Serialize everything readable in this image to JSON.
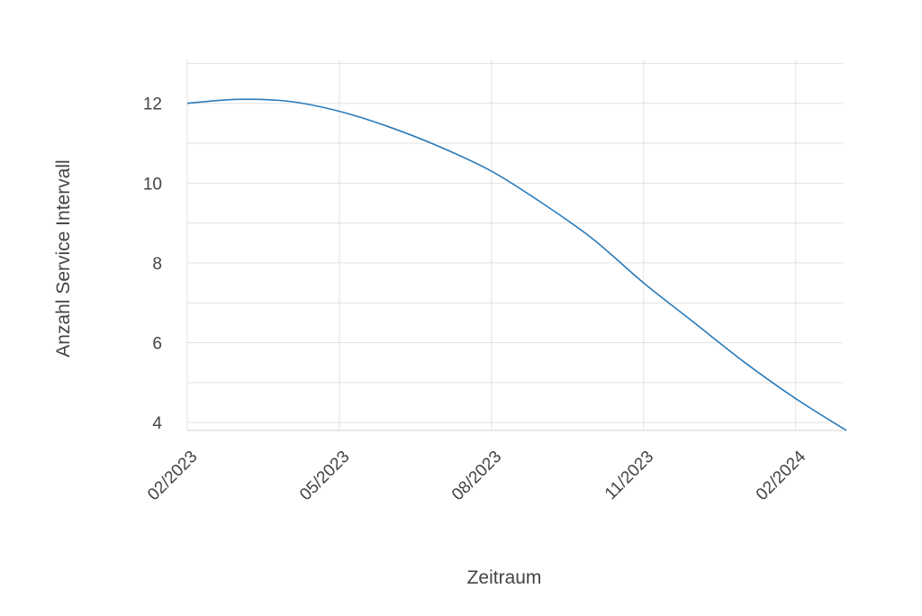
{
  "chart_data": {
    "type": "line",
    "title": "",
    "xlabel": "Zeitraum",
    "ylabel": "Anzahl Service Intervall",
    "x_ticks": [
      "02/2023",
      "05/2023",
      "08/2023",
      "11/2023",
      "02/2024"
    ],
    "y_ticks": [
      4,
      6,
      8,
      10,
      12
    ],
    "ylim": [
      3.8,
      13.1
    ],
    "x_range": [
      "2023-02",
      "2024-03"
    ],
    "grid": true,
    "series": [
      {
        "color": "#2b7bba",
        "x": [
          "2023-02",
          "2023-03",
          "2023-04",
          "2023-05",
          "2023-06",
          "2023-07",
          "2023-08",
          "2023-09",
          "2023-10",
          "2023-11",
          "2023-12",
          "2024-01",
          "2024-02",
          "2024-03"
        ],
        "y": [
          12.0,
          12.1,
          12.05,
          11.8,
          11.4,
          10.9,
          10.3,
          9.5,
          8.6,
          7.5,
          6.5,
          5.5,
          4.6,
          3.8
        ]
      }
    ]
  }
}
